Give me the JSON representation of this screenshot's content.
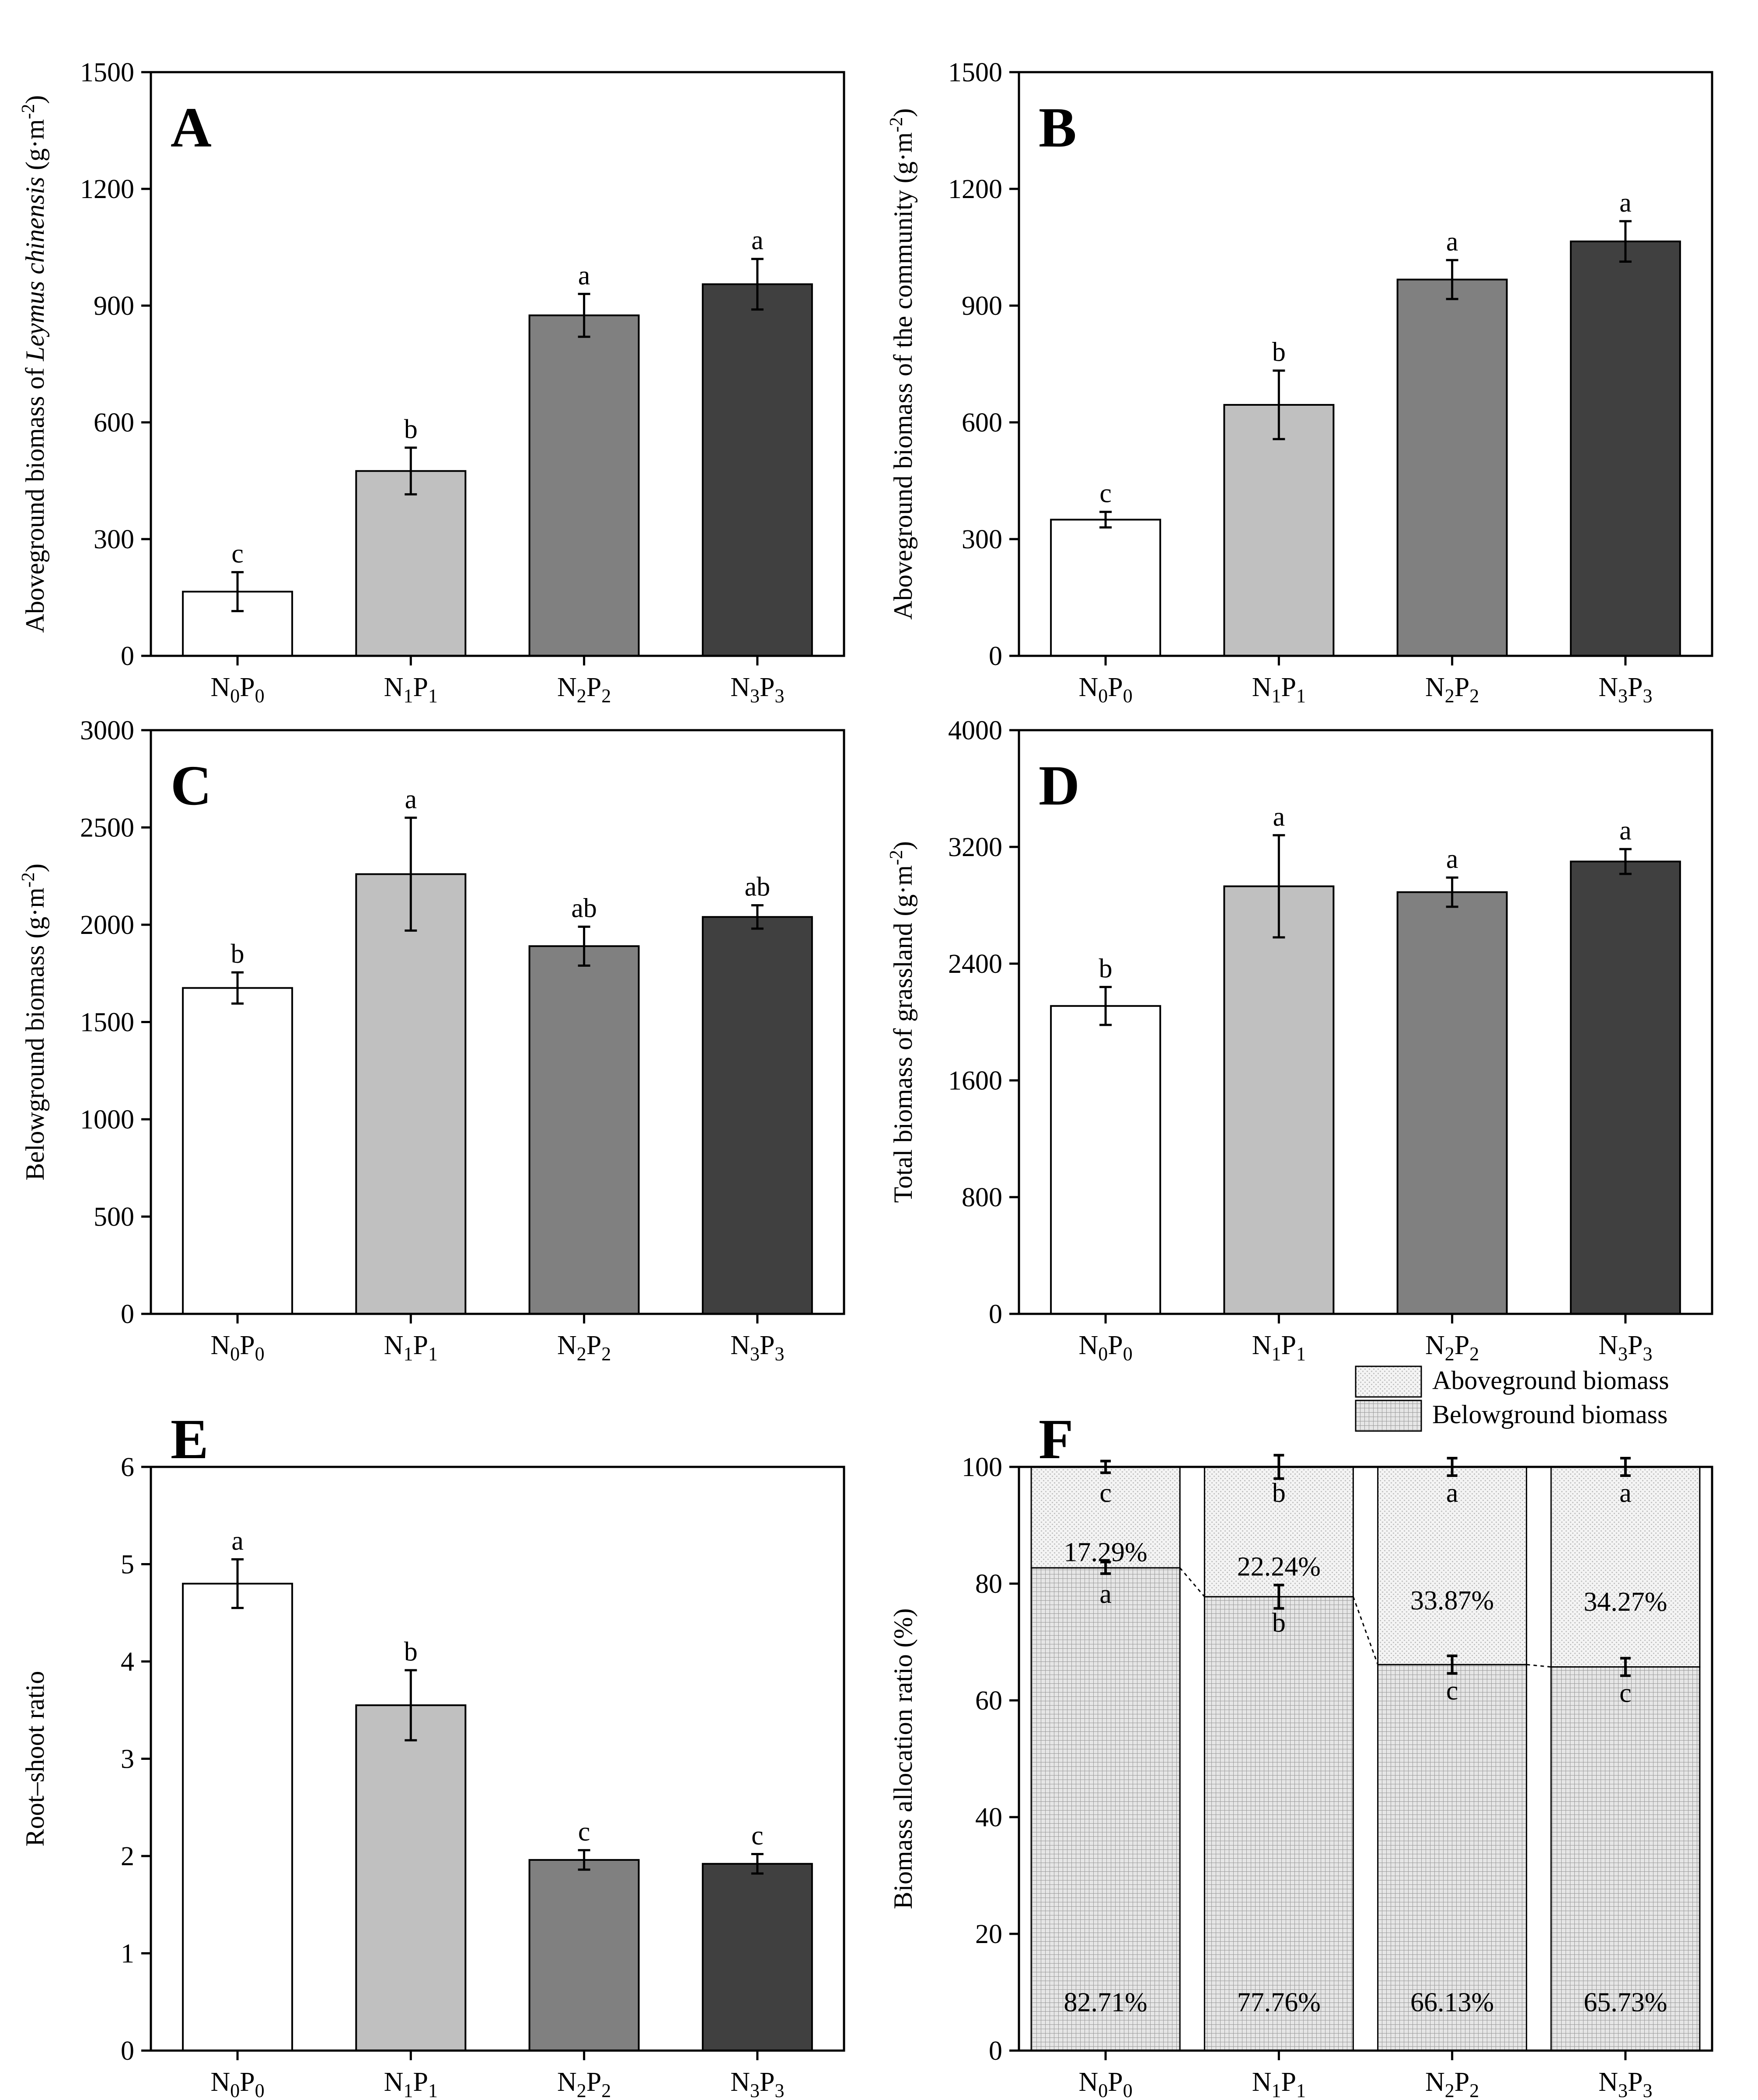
{
  "chart_data": [
    {
      "type": "bar",
      "panel": "A",
      "ylabel_prefix": "Aboveground biomass of ",
      "ylabel_italic": "Leymus chinensis",
      "ylabel_unit": " (g·m",
      "ylabel_sup": "-2",
      "ylabel_close": ")",
      "ylim": [
        0,
        1500
      ],
      "yticks": [
        "0",
        "300",
        "600",
        "900",
        "1200",
        "1500"
      ],
      "categories": [
        "N0P0",
        "N1P1",
        "N2P2",
        "N3P3"
      ],
      "category_parts": [
        [
          "N",
          "0",
          "P",
          "0"
        ],
        [
          "N",
          "1",
          "P",
          "1"
        ],
        [
          "N",
          "2",
          "P",
          "2"
        ],
        [
          "N",
          "3",
          "P",
          "3"
        ]
      ],
      "values": [
        165,
        475,
        875,
        955
      ],
      "errors": [
        50,
        60,
        55,
        65
      ],
      "letters": [
        "c",
        "b",
        "a",
        "a"
      ],
      "colors": [
        "#ffffff",
        "#c0c0c0",
        "#808080",
        "#404040"
      ]
    },
    {
      "type": "bar",
      "panel": "B",
      "ylabel_prefix": "Aboveground biomass of the community (g·m",
      "ylabel_italic": "",
      "ylabel_unit": "",
      "ylabel_sup": "-2",
      "ylabel_close": ")",
      "ylim": [
        0,
        1500
      ],
      "yticks": [
        "0",
        "300",
        "600",
        "900",
        "1200",
        "1500"
      ],
      "categories": [
        "N0P0",
        "N1P1",
        "N2P2",
        "N3P3"
      ],
      "category_parts": [
        [
          "N",
          "0",
          "P",
          "0"
        ],
        [
          "N",
          "1",
          "P",
          "1"
        ],
        [
          "N",
          "2",
          "P",
          "2"
        ],
        [
          "N",
          "3",
          "P",
          "3"
        ]
      ],
      "values": [
        350,
        645,
        967,
        1065
      ],
      "errors": [
        20,
        88,
        50,
        52
      ],
      "letters": [
        "c",
        "b",
        "a",
        "a"
      ],
      "colors": [
        "#ffffff",
        "#c0c0c0",
        "#808080",
        "#404040"
      ]
    },
    {
      "type": "bar",
      "panel": "C",
      "ylabel_prefix": "Belowground biomass (g·m",
      "ylabel_italic": "",
      "ylabel_unit": "",
      "ylabel_sup": "-2",
      "ylabel_close": ")",
      "ylim": [
        0,
        3000
      ],
      "yticks": [
        "0",
        "500",
        "1000",
        "1500",
        "2000",
        "2500",
        "3000"
      ],
      "categories": [
        "N0P0",
        "N1P1",
        "N2P2",
        "N3P3"
      ],
      "category_parts": [
        [
          "N",
          "0",
          "P",
          "0"
        ],
        [
          "N",
          "1",
          "P",
          "1"
        ],
        [
          "N",
          "2",
          "P",
          "2"
        ],
        [
          "N",
          "3",
          "P",
          "3"
        ]
      ],
      "values": [
        1675,
        2260,
        1890,
        2040
      ],
      "errors": [
        80,
        290,
        100,
        60
      ],
      "letters": [
        "b",
        "a",
        "ab",
        "ab"
      ],
      "colors": [
        "#ffffff",
        "#c0c0c0",
        "#808080",
        "#404040"
      ]
    },
    {
      "type": "bar",
      "panel": "D",
      "ylabel_prefix": "Total biomass of grassland (g·m",
      "ylabel_italic": "",
      "ylabel_unit": "",
      "ylabel_sup": "-2",
      "ylabel_close": ")",
      "ylim": [
        0,
        4000
      ],
      "yticks": [
        "0",
        "800",
        "1600",
        "2400",
        "3200",
        "4000"
      ],
      "categories": [
        "N0P0",
        "N1P1",
        "N2P2",
        "N3P3"
      ],
      "category_parts": [
        [
          "N",
          "0",
          "P",
          "0"
        ],
        [
          "N",
          "1",
          "P",
          "1"
        ],
        [
          "N",
          "2",
          "P",
          "2"
        ],
        [
          "N",
          "3",
          "P",
          "3"
        ]
      ],
      "values": [
        2110,
        2930,
        2890,
        3100
      ],
      "errors": [
        130,
        350,
        100,
        85
      ],
      "letters": [
        "b",
        "a",
        "a",
        "a"
      ],
      "colors": [
        "#ffffff",
        "#c0c0c0",
        "#808080",
        "#404040"
      ]
    },
    {
      "type": "bar",
      "panel": "E",
      "ylabel_prefix": "Root–shoot ratio",
      "ylabel_italic": "",
      "ylabel_unit": "",
      "ylabel_sup": "",
      "ylabel_close": "",
      "ylim": [
        0,
        6
      ],
      "yticks": [
        "0",
        "1",
        "2",
        "3",
        "4",
        "5",
        "6"
      ],
      "categories": [
        "N0P0",
        "N1P1",
        "N2P2",
        "N3P3"
      ],
      "category_parts": [
        [
          "N",
          "0",
          "P",
          "0"
        ],
        [
          "N",
          "1",
          "P",
          "1"
        ],
        [
          "N",
          "2",
          "P",
          "2"
        ],
        [
          "N",
          "3",
          "P",
          "3"
        ]
      ],
      "values": [
        4.8,
        3.55,
        1.96,
        1.92
      ],
      "errors": [
        0.25,
        0.36,
        0.1,
        0.1
      ],
      "letters": [
        "a",
        "b",
        "c",
        "c"
      ],
      "colors": [
        "#ffffff",
        "#c0c0c0",
        "#808080",
        "#404040"
      ]
    },
    {
      "type": "stacked_bar",
      "panel": "F",
      "ylabel_prefix": "Biomass allocation ratio (%)",
      "ylabel_italic": "",
      "ylabel_unit": "",
      "ylabel_sup": "",
      "ylabel_close": "",
      "ylim": [
        0,
        100
      ],
      "yticks": [
        "0",
        "20",
        "40",
        "60",
        "80",
        "100"
      ],
      "categories": [
        "N0P0",
        "N1P1",
        "N2P2",
        "N3P3"
      ],
      "category_parts": [
        [
          "N",
          "0",
          "P",
          "0"
        ],
        [
          "N",
          "1",
          "P",
          "1"
        ],
        [
          "N",
          "2",
          "P",
          "2"
        ],
        [
          "N",
          "3",
          "P",
          "3"
        ]
      ],
      "series": [
        {
          "name": "Belowground biomass",
          "values": [
            82.71,
            77.76,
            66.13,
            65.73
          ],
          "labels": [
            "82.71%",
            "77.76%",
            "66.13%",
            "65.73%"
          ],
          "errors": [
            1.0,
            2.0,
            1.5,
            1.5
          ],
          "letters": [
            "a",
            "b",
            "c",
            "c"
          ]
        },
        {
          "name": "Aboveground biomass",
          "values": [
            17.29,
            22.24,
            33.87,
            34.27
          ],
          "labels": [
            "17.29%",
            "22.24%",
            "33.87%",
            "34.27%"
          ],
          "errors": [
            1.0,
            2.0,
            1.5,
            1.5
          ],
          "letters": [
            "c",
            "b",
            "a",
            "a"
          ]
        }
      ],
      "legend": [
        "Aboveground biomass",
        "Belowground biomass"
      ],
      "legend_position": "top-right"
    }
  ]
}
